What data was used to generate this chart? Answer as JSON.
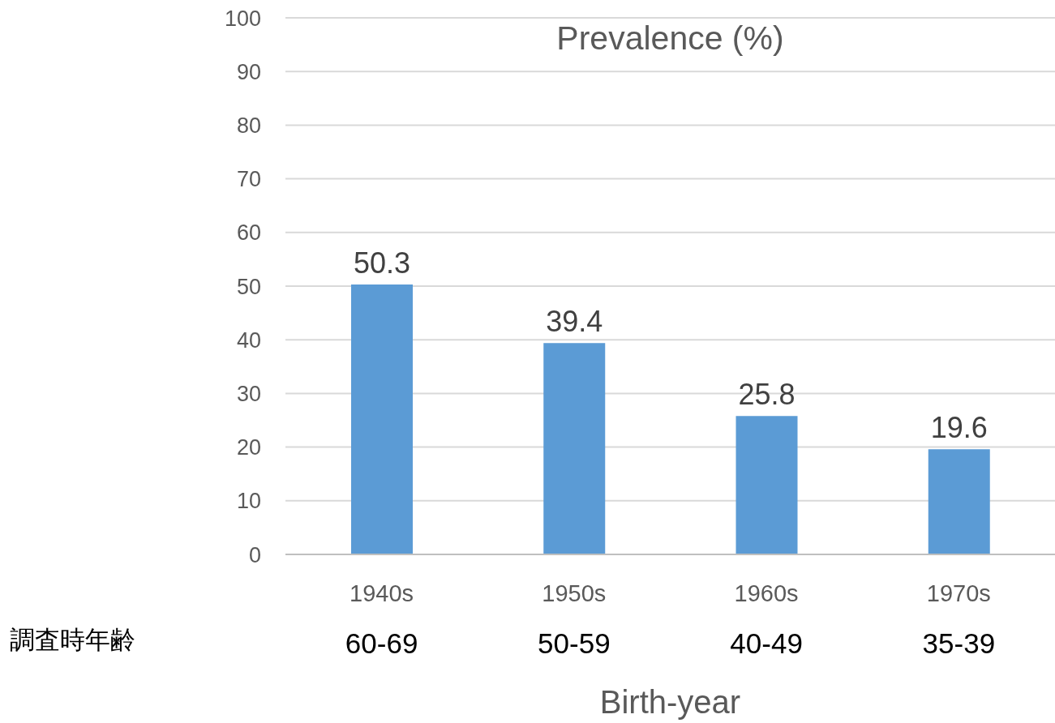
{
  "chart_data": {
    "type": "bar",
    "title": "Prevalence (%)",
    "xlabel": "Birth-year",
    "categories": [
      "1940s",
      "1950s",
      "1960s",
      "1970s"
    ],
    "values": [
      50.3,
      39.4,
      25.8,
      19.6
    ],
    "color": "#5b9bd5",
    "ylim": [
      0,
      100
    ],
    "yticks": [
      0,
      10,
      20,
      30,
      40,
      50,
      60,
      70,
      80,
      90,
      100
    ],
    "grid": "y",
    "data_labels": true,
    "annotations": [
      "調査時年齢",
      "60-69",
      "50-59",
      "40-49",
      "35-39"
    ]
  }
}
